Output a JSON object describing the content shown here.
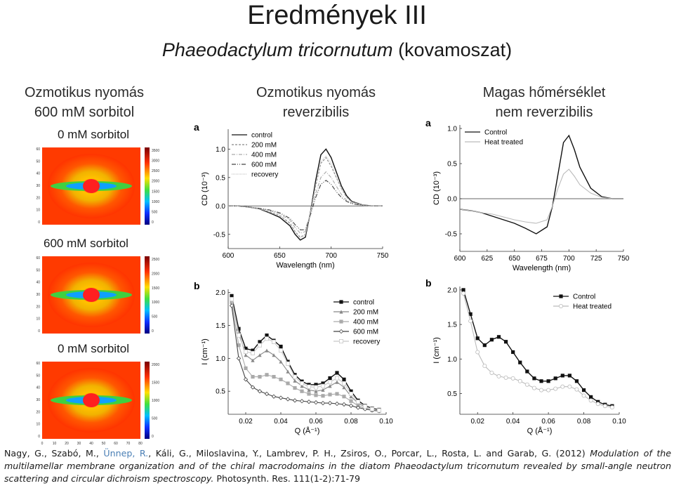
{
  "slide": {
    "title": "Eredmények III",
    "subtitle_species": "Phaeodactylum tricornutum",
    "subtitle_rest": "(kovamoszat)"
  },
  "columns": {
    "left": [
      "Ozmotikus nyomás",
      "600 mM sorbitol"
    ],
    "middle": [
      "Ozmotikus nyomás",
      "reverzibilis"
    ],
    "right": [
      "Magas hőmérséklet",
      "nem reverzibilis"
    ]
  },
  "saxs": {
    "panels": [
      {
        "label": "0 mM sorbitol",
        "colorbar": [
          "3500",
          "3000",
          "2500",
          "2000",
          "1500",
          "1000",
          "500",
          "0"
        ]
      },
      {
        "label": "600 mM sorbitol",
        "colorbar": [
          "2500",
          "2000",
          "1500",
          "1000",
          "500",
          "0"
        ]
      },
      {
        "label": "0 mM sorbitol",
        "colorbar": [
          "2000",
          "1500",
          "1000",
          "500",
          "0"
        ]
      }
    ],
    "axis_ticks": [
      "0",
      "10",
      "20",
      "30",
      "40",
      "50",
      "60",
      "70",
      "80"
    ],
    "y_ticks": [
      "60",
      "50",
      "40",
      "30",
      "20",
      "10",
      "0"
    ]
  },
  "citation": {
    "authors_before": "Nagy, G., Szabó, M., ",
    "highlight": "Ünnep, R.",
    "authors_after": ", Káli, G., Miloslavina, Y., Lambrev, P. H., Zsiros, O., Porcar, L., Rosta, L. and Garab, G. (2012) ",
    "title": "Modulation of the multilamellar membrane organization and of the chiral macrodomains in the diatom Phaeodactylum tricornutum revealed by small-angle neutron scattering and circular dichroism spectroscopy.",
    "journal": " Photosynth. Res. 111(1-2):71-79"
  },
  "chart_data": [
    {
      "type": "line",
      "panel": "a",
      "xlabel": "Wavelength (nm)",
      "ylabel": "CD (10⁻³)",
      "xlim": [
        600,
        750
      ],
      "ylim": [
        -0.75,
        1.35
      ],
      "xticks": [
        600,
        650,
        700,
        750
      ],
      "yticks": [
        1.0,
        0.5,
        0.0,
        -0.5
      ],
      "legend": "top-left",
      "x": [
        600,
        610,
        620,
        630,
        640,
        650,
        660,
        665,
        670,
        675,
        680,
        685,
        690,
        695,
        700,
        705,
        710,
        715,
        720,
        730,
        740,
        750
      ],
      "series": [
        {
          "name": "control",
          "values": [
            0,
            0,
            -0.02,
            -0.05,
            -0.12,
            -0.2,
            -0.35,
            -0.5,
            -0.6,
            -0.55,
            -0.1,
            0.45,
            0.9,
            1.0,
            0.85,
            0.6,
            0.35,
            0.18,
            0.08,
            0.02,
            0,
            0
          ]
        },
        {
          "name": "200 mM",
          "values": [
            0,
            0,
            -0.02,
            -0.05,
            -0.1,
            -0.17,
            -0.3,
            -0.45,
            -0.55,
            -0.5,
            -0.1,
            0.35,
            0.75,
            0.85,
            0.7,
            0.5,
            0.3,
            0.15,
            0.07,
            0.02,
            0,
            0
          ]
        },
        {
          "name": "400 mM",
          "values": [
            0,
            0,
            -0.02,
            -0.04,
            -0.08,
            -0.14,
            -0.25,
            -0.38,
            -0.48,
            -0.45,
            -0.12,
            0.22,
            0.5,
            0.6,
            0.5,
            0.35,
            0.2,
            0.1,
            0.05,
            0.01,
            0,
            0
          ]
        },
        {
          "name": "600 mM",
          "values": [
            0,
            0,
            -0.02,
            -0.04,
            -0.07,
            -0.12,
            -0.22,
            -0.33,
            -0.42,
            -0.42,
            -0.15,
            0.15,
            0.38,
            0.45,
            0.38,
            0.25,
            0.15,
            0.08,
            0.04,
            0.01,
            0,
            0
          ]
        },
        {
          "name": "recovery",
          "values": [
            0,
            0,
            -0.02,
            -0.05,
            -0.11,
            -0.18,
            -0.32,
            -0.47,
            -0.57,
            -0.52,
            -0.1,
            0.38,
            0.78,
            0.88,
            0.75,
            0.52,
            0.3,
            0.15,
            0.07,
            0.02,
            0,
            0
          ]
        }
      ]
    },
    {
      "type": "line",
      "panel": "a",
      "xlabel": "Wavelength (nm)",
      "ylabel": "CD (10⁻³)",
      "xlim": [
        600,
        750
      ],
      "ylim": [
        -0.75,
        1.05
      ],
      "xticks": [
        600,
        625,
        650,
        675,
        700,
        725,
        750
      ],
      "yticks": [
        1.0,
        0.5,
        0.0,
        -0.5
      ],
      "legend": "top-left",
      "x": [
        600,
        610,
        620,
        630,
        640,
        650,
        660,
        670,
        680,
        685,
        690,
        695,
        700,
        705,
        710,
        720,
        730,
        740,
        750
      ],
      "series": [
        {
          "name": "Control",
          "values": [
            -0.15,
            -0.17,
            -0.2,
            -0.25,
            -0.3,
            -0.35,
            -0.42,
            -0.5,
            -0.4,
            -0.1,
            0.35,
            0.8,
            0.9,
            0.7,
            0.45,
            0.15,
            0.03,
            0,
            0
          ]
        },
        {
          "name": "Heat treated",
          "values": [
            -0.15,
            -0.17,
            -0.2,
            -0.22,
            -0.26,
            -0.3,
            -0.33,
            -0.35,
            -0.3,
            -0.1,
            0.15,
            0.35,
            0.42,
            0.32,
            0.2,
            0.08,
            0.02,
            0,
            0
          ]
        }
      ]
    },
    {
      "type": "line",
      "panel": "b",
      "xlabel": "Q (Å⁻¹)",
      "ylabel": "I (cm⁻¹)",
      "xlim": [
        0.01,
        0.1
      ],
      "ylim": [
        0.15,
        2.05
      ],
      "xticks": [
        0.02,
        0.04,
        0.06,
        0.08,
        0.1
      ],
      "yticks": [
        2.0,
        1.5,
        1.0,
        0.5
      ],
      "legend": "top-right",
      "x": [
        0.012,
        0.016,
        0.02,
        0.024,
        0.028,
        0.032,
        0.036,
        0.04,
        0.044,
        0.048,
        0.052,
        0.056,
        0.06,
        0.064,
        0.068,
        0.072,
        0.076,
        0.08,
        0.084,
        0.088,
        0.092,
        0.096
      ],
      "series": [
        {
          "name": "control",
          "values": [
            1.95,
            1.45,
            1.15,
            1.12,
            1.25,
            1.35,
            1.27,
            1.18,
            0.95,
            0.75,
            0.65,
            0.6,
            0.6,
            0.62,
            0.7,
            0.78,
            0.68,
            0.5,
            0.36,
            0.28,
            0.24,
            0.22
          ]
        },
        {
          "name": "200 mM",
          "values": [
            1.9,
            1.4,
            1.05,
            0.97,
            1.05,
            1.12,
            1.05,
            0.95,
            0.8,
            0.66,
            0.58,
            0.52,
            0.5,
            0.52,
            0.58,
            0.64,
            0.56,
            0.42,
            0.32,
            0.26,
            0.23,
            0.21
          ]
        },
        {
          "name": "400 mM",
          "values": [
            1.85,
            1.2,
            0.85,
            0.72,
            0.72,
            0.75,
            0.72,
            0.68,
            0.62,
            0.55,
            0.5,
            0.46,
            0.44,
            0.43,
            0.45,
            0.46,
            0.42,
            0.35,
            0.28,
            0.24,
            0.21,
            0.2
          ]
        },
        {
          "name": "600 mM",
          "values": [
            1.8,
            1.0,
            0.68,
            0.56,
            0.5,
            0.46,
            0.42,
            0.4,
            0.38,
            0.36,
            0.35,
            0.34,
            0.33,
            0.32,
            0.32,
            0.31,
            0.3,
            0.28,
            0.25,
            0.23,
            0.21,
            0.2
          ]
        },
        {
          "name": "recovery",
          "values": [
            1.9,
            1.35,
            1.1,
            1.08,
            1.2,
            1.3,
            1.25,
            1.12,
            0.92,
            0.72,
            0.62,
            0.57,
            0.56,
            0.58,
            0.64,
            0.7,
            0.62,
            0.46,
            0.34,
            0.27,
            0.23,
            0.21
          ]
        }
      ]
    },
    {
      "type": "line",
      "panel": "b",
      "xlabel": "Q (Å⁻¹)",
      "ylabel": "I (cm⁻¹)",
      "xlim": [
        0.01,
        0.1
      ],
      "ylim": [
        0.2,
        2.05
      ],
      "xticks": [
        0.02,
        0.04,
        0.06,
        0.08,
        0.1
      ],
      "yticks": [
        2.0,
        1.5,
        1.0,
        0.5
      ],
      "legend": "top-right",
      "x": [
        0.012,
        0.016,
        0.02,
        0.024,
        0.028,
        0.032,
        0.036,
        0.04,
        0.044,
        0.048,
        0.052,
        0.056,
        0.06,
        0.064,
        0.068,
        0.072,
        0.076,
        0.08,
        0.084,
        0.088,
        0.092,
        0.096
      ],
      "series": [
        {
          "name": "Control",
          "values": [
            2.0,
            1.65,
            1.3,
            1.2,
            1.28,
            1.32,
            1.25,
            1.1,
            0.95,
            0.82,
            0.72,
            0.68,
            0.68,
            0.72,
            0.76,
            0.76,
            0.68,
            0.55,
            0.45,
            0.38,
            0.34,
            0.32
          ]
        },
        {
          "name": "Heat treated",
          "values": [
            1.95,
            1.55,
            1.1,
            0.9,
            0.8,
            0.75,
            0.73,
            0.72,
            0.68,
            0.63,
            0.58,
            0.55,
            0.55,
            0.57,
            0.6,
            0.6,
            0.56,
            0.47,
            0.4,
            0.35,
            0.32,
            0.3
          ]
        }
      ]
    }
  ]
}
